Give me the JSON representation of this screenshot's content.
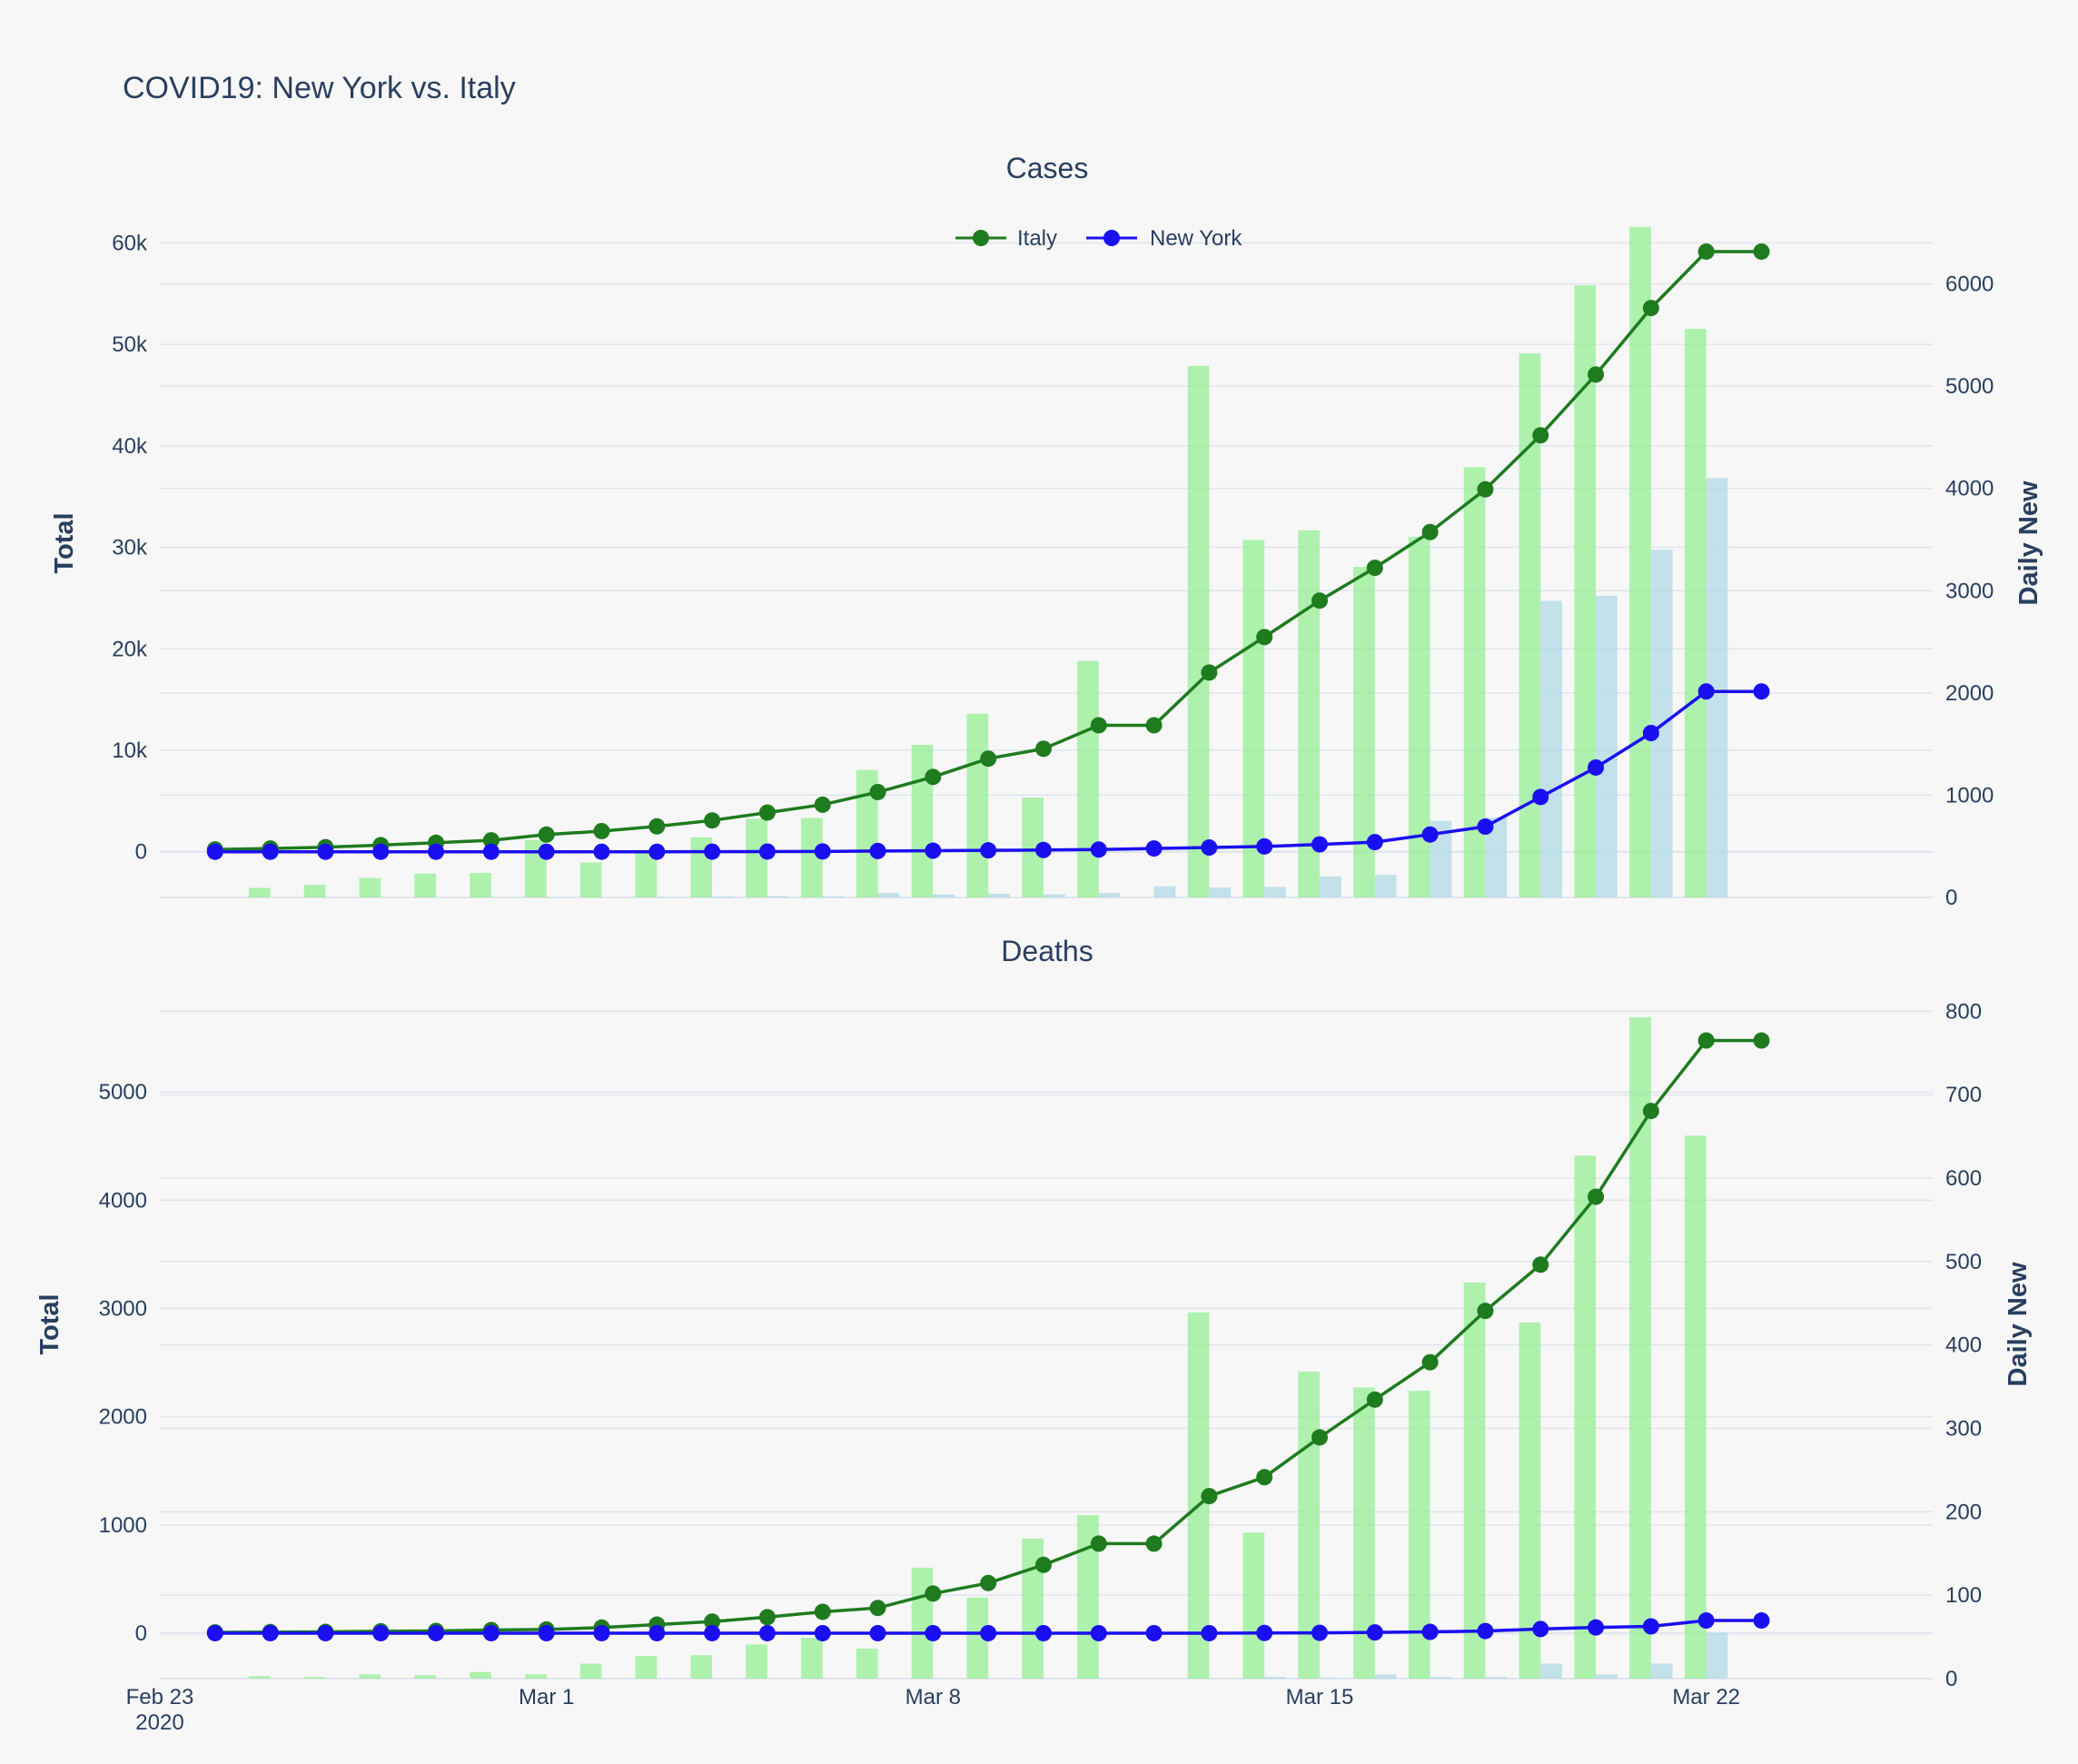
{
  "title": "COVID19: New York vs. Italy",
  "legend": [
    {
      "name": "Italy",
      "color": "#1e7b1e"
    },
    {
      "name": "New York",
      "color": "#1a0ff0"
    }
  ],
  "colors": {
    "italy_line": "#1e7b1e",
    "ny_line": "#1a0ff0",
    "italy_bar": "#90ee90",
    "ny_bar": "#add8e6",
    "grid": "#e1e5ed",
    "background": "#f7f7f7"
  },
  "chart_data": [
    {
      "type": "line",
      "subtitle": "Cases",
      "ylabel": "Total",
      "y2label": "Daily New",
      "ylim": [
        -4500,
        62000
      ],
      "y2lim": [
        0,
        6600
      ],
      "yticks": [
        0,
        10000,
        20000,
        30000,
        40000,
        50000,
        60000
      ],
      "yticklabels": [
        "0",
        "10k",
        "20k",
        "30k",
        "40k",
        "50k",
        "60k"
      ],
      "y2ticks": [
        0,
        1000,
        2000,
        3000,
        4000,
        5000,
        6000
      ],
      "x": [
        "2020-02-24",
        "2020-02-25",
        "2020-02-26",
        "2020-02-27",
        "2020-02-28",
        "2020-02-29",
        "2020-03-01",
        "2020-03-02",
        "2020-03-03",
        "2020-03-04",
        "2020-03-05",
        "2020-03-06",
        "2020-03-07",
        "2020-03-08",
        "2020-03-09",
        "2020-03-10",
        "2020-03-11",
        "2020-03-12",
        "2020-03-13",
        "2020-03-14",
        "2020-03-15",
        "2020-03-16",
        "2020-03-17",
        "2020-03-18",
        "2020-03-19",
        "2020-03-20",
        "2020-03-21",
        "2020-03-22",
        "2020-03-23"
      ],
      "series": [
        {
          "name": "Italy",
          "axis": "y",
          "kind": "line",
          "values": [
            229,
            322,
            453,
            655,
            888,
            1128,
            1694,
            2036,
            2502,
            3089,
            3858,
            4636,
            5883,
            7375,
            9172,
            10149,
            12462,
            12462,
            17660,
            21157,
            24747,
            27980,
            31506,
            35713,
            41035,
            47021,
            53578,
            59138,
            59138
          ]
        },
        {
          "name": "New York",
          "axis": "y",
          "kind": "line",
          "values": [
            0,
            0,
            0,
            0,
            0,
            0,
            1,
            1,
            2,
            11,
            23,
            33,
            76,
            106,
            142,
            173,
            216,
            325,
            421,
            524,
            729,
            950,
            1700,
            2480,
            5400,
            8300,
            11700,
            15800,
            15800
          ]
        },
        {
          "name": "Italy",
          "axis": "y2",
          "kind": "bar",
          "values": [
            0,
            93,
            123,
            190,
            233,
            240,
            561,
            342,
            466,
            587,
            769,
            778,
            1247,
            1492,
            1797,
            977,
            2313,
            0,
            5198,
            3497,
            3590,
            3233,
            3526,
            4207,
            5322,
            5986,
            6557,
            5560,
            0
          ]
        },
        {
          "name": "New York",
          "axis": "y2",
          "kind": "bar",
          "values": [
            0,
            0,
            0,
            0,
            0,
            0,
            1,
            0,
            1,
            9,
            12,
            10,
            43,
            30,
            36,
            31,
            43,
            109,
            96,
            103,
            205,
            221,
            750,
            780,
            2900,
            2950,
            3400,
            4100,
            0
          ]
        }
      ]
    },
    {
      "type": "line",
      "subtitle": "Deaths",
      "ylabel": "Total",
      "y2label": "Daily New",
      "ylim": [
        -420,
        5900
      ],
      "y2lim": [
        0,
        820
      ],
      "yticks": [
        0,
        1000,
        2000,
        3000,
        4000,
        5000
      ],
      "yticklabels": [
        "0",
        "1000",
        "2000",
        "3000",
        "4000",
        "5000"
      ],
      "y2ticks": [
        0,
        100,
        200,
        300,
        400,
        500,
        600,
        700,
        800
      ],
      "xticklabels": [
        {
          "date": "2020-02-23",
          "label": "Feb 23",
          "sub": "2020"
        },
        {
          "date": "2020-03-01",
          "label": "Mar 1"
        },
        {
          "date": "2020-03-08",
          "label": "Mar 8"
        },
        {
          "date": "2020-03-15",
          "label": "Mar 15"
        },
        {
          "date": "2020-03-22",
          "label": "Mar 22"
        }
      ],
      "x": [
        "2020-02-24",
        "2020-02-25",
        "2020-02-26",
        "2020-02-27",
        "2020-02-28",
        "2020-02-29",
        "2020-03-01",
        "2020-03-02",
        "2020-03-03",
        "2020-03-04",
        "2020-03-05",
        "2020-03-06",
        "2020-03-07",
        "2020-03-08",
        "2020-03-09",
        "2020-03-10",
        "2020-03-11",
        "2020-03-12",
        "2020-03-13",
        "2020-03-14",
        "2020-03-15",
        "2020-03-16",
        "2020-03-17",
        "2020-03-18",
        "2020-03-19",
        "2020-03-20",
        "2020-03-21",
        "2020-03-22",
        "2020-03-23"
      ],
      "series": [
        {
          "name": "Italy",
          "axis": "y",
          "kind": "line",
          "values": [
            7,
            10,
            12,
            17,
            21,
            29,
            34,
            52,
            79,
            107,
            148,
            197,
            233,
            366,
            463,
            631,
            827,
            827,
            1266,
            1441,
            1809,
            2158,
            2503,
            2978,
            3405,
            4032,
            4825,
            5476,
            5476
          ]
        },
        {
          "name": "New York",
          "axis": "y",
          "kind": "line",
          "values": [
            0,
            0,
            0,
            0,
            0,
            0,
            0,
            0,
            0,
            0,
            0,
            0,
            0,
            0,
            0,
            0,
            0,
            0,
            0,
            2,
            3,
            7,
            12,
            20,
            38,
            53,
            63,
            117,
            117
          ]
        },
        {
          "name": "Italy",
          "axis": "y2",
          "kind": "bar",
          "values": [
            0,
            3,
            2,
            5,
            4,
            8,
            5,
            18,
            27,
            28,
            41,
            49,
            36,
            133,
            97,
            168,
            196,
            0,
            439,
            175,
            368,
            349,
            345,
            475,
            427,
            627,
            793,
            651,
            0
          ]
        },
        {
          "name": "New York",
          "axis": "y2",
          "kind": "bar",
          "values": [
            0,
            0,
            0,
            0,
            0,
            0,
            0,
            0,
            0,
            0,
            0,
            0,
            0,
            0,
            0,
            0,
            0,
            0,
            0,
            2,
            1,
            5,
            2,
            2,
            18,
            5,
            18,
            55,
            0
          ]
        }
      ]
    }
  ]
}
